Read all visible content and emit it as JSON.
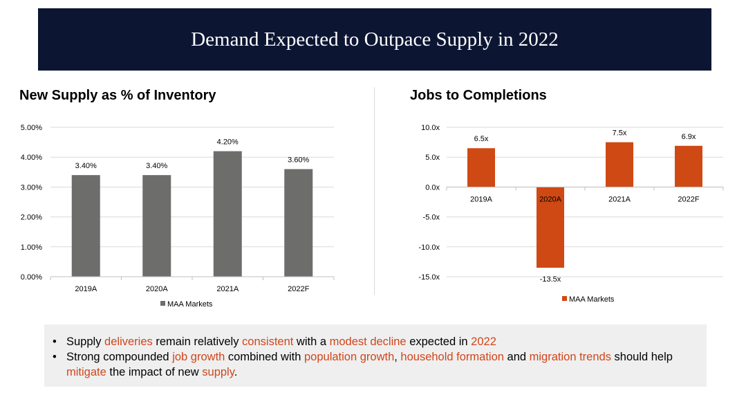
{
  "header": {
    "title": "Demand Expected to Outpace Supply in 2022"
  },
  "colors": {
    "header_bg": "#0c1633",
    "gray_bar": "#6d6e6c",
    "orange_bar": "#cf4914",
    "highlight": "#d0461b",
    "panel_bg": "#efefef"
  },
  "chart_data": [
    {
      "type": "bar",
      "title": "New Supply as % of Inventory",
      "categories": [
        "2019A",
        "2020A",
        "2021A",
        "2022F"
      ],
      "series": [
        {
          "name": "MAA Markets",
          "values": [
            3.4,
            3.4,
            4.2,
            3.6
          ]
        }
      ],
      "data_labels": [
        "3.40%",
        "3.40%",
        "4.20%",
        "3.60%"
      ],
      "y_ticks": [
        0,
        1,
        2,
        3,
        4,
        5
      ],
      "y_tick_labels": [
        "0.00%",
        "1.00%",
        "2.00%",
        "3.00%",
        "4.00%",
        "5.00%"
      ],
      "ylim": [
        0,
        5
      ],
      "grid": true,
      "legend": "bottom",
      "color": "#6d6e6c"
    },
    {
      "type": "bar",
      "title": "Jobs to Completions",
      "categories": [
        "2019A",
        "2020A",
        "2021A",
        "2022F"
      ],
      "series": [
        {
          "name": "MAA Markets",
          "values": [
            6.5,
            -13.5,
            7.5,
            6.9
          ]
        }
      ],
      "data_labels": [
        "6.5x",
        "-13.5x",
        "7.5x",
        "6.9x"
      ],
      "y_ticks": [
        -15,
        -10,
        -5,
        0,
        5,
        10
      ],
      "y_tick_labels": [
        "-15.0x",
        "-10.0x",
        "-5.0x",
        "0.0x",
        "5.0x",
        "10.0x"
      ],
      "ylim": [
        -15,
        10
      ],
      "grid": true,
      "legend": "bottom",
      "color": "#cf4914"
    }
  ],
  "bullets": [
    {
      "segments": [
        {
          "text": "Supply ",
          "hl": false
        },
        {
          "text": "deliveries",
          "hl": true
        },
        {
          "text": " remain relatively ",
          "hl": false
        },
        {
          "text": "consistent",
          "hl": true
        },
        {
          "text": " with a ",
          "hl": false
        },
        {
          "text": "modest decline",
          "hl": true
        },
        {
          "text": " expected in ",
          "hl": false
        },
        {
          "text": "2022",
          "hl": true
        }
      ]
    },
    {
      "segments": [
        {
          "text": "Strong compounded ",
          "hl": false
        },
        {
          "text": "job growth",
          "hl": true
        },
        {
          "text": " combined with ",
          "hl": false
        },
        {
          "text": "population growth",
          "hl": true
        },
        {
          "text": ", ",
          "hl": false
        },
        {
          "text": "household formation",
          "hl": true
        },
        {
          "text": " and ",
          "hl": false
        },
        {
          "text": "migration trends",
          "hl": true
        },
        {
          "text": " should help ",
          "hl": false
        },
        {
          "text": "mitigate",
          "hl": true
        },
        {
          "text": " the impact of new ",
          "hl": false
        },
        {
          "text": "supply",
          "hl": true
        },
        {
          "text": ".",
          "hl": false
        }
      ]
    }
  ]
}
